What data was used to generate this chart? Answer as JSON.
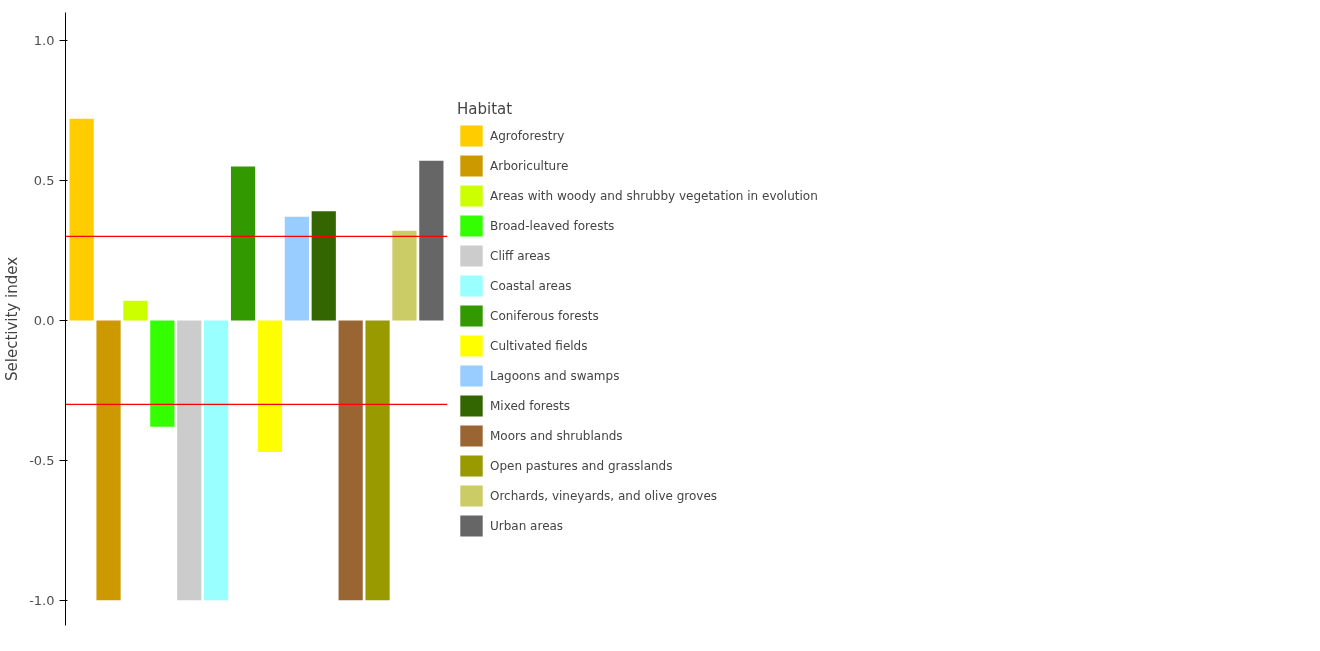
{
  "chart_data": {
    "type": "bar",
    "ylabel": "Selectivity index",
    "legend_title": "Habitat",
    "categories": [
      null,
      null,
      null,
      null,
      null,
      null,
      null,
      null,
      null,
      null,
      null,
      null,
      null,
      null
    ],
    "series": [
      {
        "name": "Agroforestry",
        "color": "#ffcc00",
        "values": [
          0.72,
          null,
          null,
          null,
          null,
          null,
          null,
          null,
          null,
          null,
          null,
          null,
          null,
          null
        ]
      },
      {
        "name": "Arboriculture",
        "color": "#cc9900",
        "values": [
          null,
          -1.0,
          null,
          null,
          null,
          null,
          null,
          null,
          null,
          null,
          null,
          null,
          null,
          null
        ]
      },
      {
        "name": "Areas with woody and shrubby vegetation in evolution",
        "color": "#ccff00",
        "values": [
          null,
          null,
          0.07,
          null,
          null,
          null,
          null,
          null,
          null,
          null,
          null,
          null,
          null,
          null
        ]
      },
      {
        "name": "Broad-leaved forests",
        "color": "#33ff00",
        "values": [
          null,
          null,
          null,
          -0.38,
          null,
          null,
          null,
          null,
          null,
          null,
          null,
          null,
          null,
          null
        ]
      },
      {
        "name": "Cliff areas",
        "color": "#cccccc",
        "values": [
          null,
          null,
          null,
          null,
          -1.0,
          null,
          null,
          null,
          null,
          null,
          null,
          null,
          null,
          null
        ]
      },
      {
        "name": "Coastal areas",
        "color": "#99ffff",
        "values": [
          null,
          null,
          null,
          null,
          null,
          -1.0,
          null,
          null,
          null,
          null,
          null,
          null,
          null,
          null
        ]
      },
      {
        "name": "Coniferous forests",
        "color": "#339900",
        "values": [
          null,
          null,
          null,
          null,
          null,
          null,
          0.55,
          null,
          null,
          null,
          null,
          null,
          null,
          null
        ]
      },
      {
        "name": "Cultivated fields",
        "color": "#ffff00",
        "values": [
          null,
          null,
          null,
          null,
          null,
          null,
          null,
          -0.47,
          null,
          null,
          null,
          null,
          null,
          null
        ]
      },
      {
        "name": "Lagoons and swamps",
        "color": "#99ccff",
        "values": [
          null,
          null,
          null,
          null,
          null,
          null,
          null,
          null,
          0.37,
          null,
          null,
          null,
          null,
          null
        ]
      },
      {
        "name": "Mixed forests",
        "color": "#336600",
        "values": [
          null,
          null,
          null,
          null,
          null,
          null,
          null,
          null,
          null,
          0.39,
          null,
          null,
          null,
          null
        ]
      },
      {
        "name": "Moors and shrublands",
        "color": "#996633",
        "values": [
          null,
          null,
          null,
          null,
          null,
          null,
          null,
          null,
          null,
          null,
          -1.0,
          null,
          null,
          null
        ]
      },
      {
        "name": "Open pastures and grasslands",
        "color": "#999900",
        "values": [
          null,
          null,
          null,
          null,
          null,
          null,
          null,
          null,
          null,
          null,
          null,
          -1.0,
          null,
          null
        ]
      },
      {
        "name": "Orchards, vineyards, and olive groves",
        "color": "#cccc66",
        "values": [
          null,
          null,
          null,
          null,
          null,
          null,
          null,
          null,
          null,
          null,
          null,
          null,
          0.32,
          null
        ]
      },
      {
        "name": "Urban areas",
        "color": "#666666",
        "values": [
          null,
          null,
          null,
          null,
          null,
          null,
          null,
          null,
          null,
          null,
          null,
          null,
          null,
          0.57
        ]
      }
    ],
    "ylim": [
      -1.09,
      1.1
    ],
    "yticks": [
      {
        "value": -1.0,
        "label": "-1.0"
      },
      {
        "value": -0.5,
        "label": "-0.5"
      },
      {
        "value": 0.0,
        "label": "0.0"
      },
      {
        "value": 0.5,
        "label": "0.5"
      },
      {
        "value": 1.0,
        "label": "1.0"
      }
    ],
    "ref_lines": [
      {
        "axis": "y",
        "value": 0.3,
        "color": "#ff0000"
      },
      {
        "axis": "y",
        "value": -0.3,
        "color": "#ff0000"
      }
    ],
    "tick_labels": "y",
    "legend": "right",
    "grid": false
  }
}
